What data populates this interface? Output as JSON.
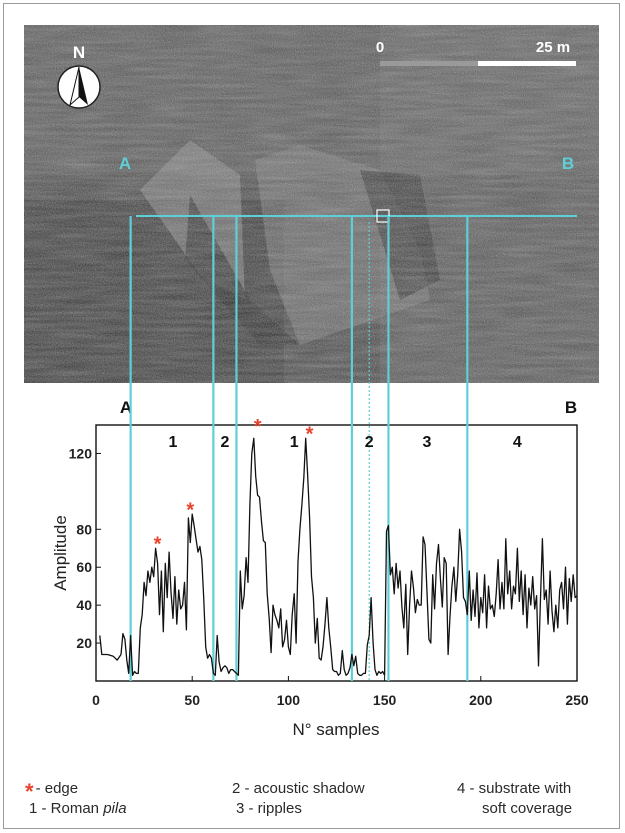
{
  "figure": {
    "sonar_image": {
      "description_label_left": "A",
      "description_label_right": "B",
      "north_label": "N",
      "scale_bar": {
        "start_label": "0",
        "end_label": "25 m"
      }
    },
    "profile_labels": {
      "left": "A",
      "right": "B"
    },
    "segment_labels": [
      "1",
      "2",
      "1",
      "2",
      "3",
      "4"
    ],
    "colors": {
      "profile_line": "#5ecfd6",
      "edge_marker": "#e8432b",
      "trace": "#111111",
      "sonar_dark": "#2b2b2b"
    }
  },
  "legend": {
    "edge_symbol": "*",
    "edge": "- edge",
    "roman_prefix": "1 - Roman ",
    "roman_italic": "pila",
    "acoustic_shadow": "2 - acoustic shadow",
    "ripples": "3 - ripples",
    "substrate_line1": "4 - substrate with",
    "substrate_line2": "soft coverage"
  },
  "chart_data": {
    "type": "line",
    "xlabel": "N° samples",
    "ylabel": "Amplitude",
    "xlim": [
      0,
      250
    ],
    "ylim": [
      0,
      135
    ],
    "xticks": [
      0,
      50,
      100,
      150,
      200,
      250
    ],
    "yticks": [
      20,
      40,
      60,
      80,
      120
    ],
    "segment_boundaries": [
      18,
      61,
      73,
      133,
      152,
      193
    ],
    "segments": [
      {
        "label": "1",
        "x_center": 40
      },
      {
        "label": "2",
        "x_center": 67
      },
      {
        "label": "1",
        "x_center": 103
      },
      {
        "label": "2",
        "x_center": 142
      },
      {
        "label": "3",
        "x_center": 172
      },
      {
        "label": "4",
        "x_center": 219
      }
    ],
    "edge_markers": [
      {
        "x": 32,
        "y": 72
      },
      {
        "x": 49,
        "y": 90
      },
      {
        "x": 84,
        "y": 134
      },
      {
        "x": 111,
        "y": 130
      }
    ],
    "dotted_marker_x": 142,
    "series": [
      {
        "values": [
          [
            2,
            24
          ],
          [
            3,
            14
          ],
          [
            6,
            14
          ],
          [
            9,
            13
          ],
          [
            11,
            11
          ],
          [
            13,
            14
          ],
          [
            14,
            25
          ],
          [
            15,
            22
          ],
          [
            16,
            11
          ],
          [
            17,
            4
          ],
          [
            18,
            24
          ],
          [
            19,
            3
          ],
          [
            20,
            5
          ],
          [
            21,
            4
          ],
          [
            22,
            4
          ],
          [
            23,
            28
          ],
          [
            24,
            35
          ],
          [
            25,
            52
          ],
          [
            26,
            45
          ],
          [
            27,
            58
          ],
          [
            28,
            52
          ],
          [
            29,
            60
          ],
          [
            30,
            55
          ],
          [
            31,
            70
          ],
          [
            32,
            62
          ],
          [
            33,
            35
          ],
          [
            34,
            58
          ],
          [
            35,
            26
          ],
          [
            36,
            62
          ],
          [
            37,
            44
          ],
          [
            38,
            68
          ],
          [
            39,
            47
          ],
          [
            40,
            33
          ],
          [
            41,
            55
          ],
          [
            42,
            30
          ],
          [
            43,
            48
          ],
          [
            44,
            38
          ],
          [
            45,
            40
          ],
          [
            46,
            52
          ],
          [
            47,
            27
          ],
          [
            48,
            86
          ],
          [
            49,
            73
          ],
          [
            50,
            88
          ],
          [
            51,
            82
          ],
          [
            52,
            75
          ],
          [
            53,
            68
          ],
          [
            54,
            71
          ],
          [
            55,
            64
          ],
          [
            56,
            44
          ],
          [
            57,
            18
          ],
          [
            58,
            12
          ],
          [
            59,
            14
          ],
          [
            60,
            12
          ],
          [
            61,
            4
          ],
          [
            62,
            3
          ],
          [
            63,
            24
          ],
          [
            64,
            10
          ],
          [
            65,
            5
          ],
          [
            66,
            7
          ],
          [
            67,
            8
          ],
          [
            68,
            7
          ],
          [
            69,
            4
          ],
          [
            70,
            6
          ],
          [
            71,
            6
          ],
          [
            72,
            5
          ],
          [
            73,
            4
          ],
          [
            74,
            3
          ],
          [
            75,
            58
          ],
          [
            76,
            38
          ],
          [
            77,
            45
          ],
          [
            78,
            65
          ],
          [
            79,
            52
          ],
          [
            80,
            93
          ],
          [
            81,
            120
          ],
          [
            82,
            128
          ],
          [
            83,
            108
          ],
          [
            84,
            98
          ],
          [
            85,
            97
          ],
          [
            86,
            84
          ],
          [
            87,
            74
          ],
          [
            88,
            73
          ],
          [
            89,
            46
          ],
          [
            90,
            33
          ],
          [
            91,
            15
          ],
          [
            92,
            40
          ],
          [
            93,
            35
          ],
          [
            94,
            32
          ],
          [
            95,
            28
          ],
          [
            96,
            38
          ],
          [
            97,
            18
          ],
          [
            98,
            22
          ],
          [
            99,
            32
          ],
          [
            100,
            18
          ],
          [
            101,
            14
          ],
          [
            102,
            35
          ],
          [
            103,
            46
          ],
          [
            104,
            20
          ],
          [
            105,
            63
          ],
          [
            106,
            80
          ],
          [
            107,
            93
          ],
          [
            108,
            107
          ],
          [
            109,
            128
          ],
          [
            110,
            109
          ],
          [
            111,
            86
          ],
          [
            112,
            55
          ],
          [
            113,
            44
          ],
          [
            114,
            20
          ],
          [
            115,
            33
          ],
          [
            116,
            12
          ],
          [
            117,
            11
          ],
          [
            118,
            18
          ],
          [
            119,
            30
          ],
          [
            120,
            44
          ],
          [
            121,
            28
          ],
          [
            122,
            18
          ],
          [
            123,
            6
          ],
          [
            124,
            5
          ],
          [
            125,
            5
          ],
          [
            126,
            3
          ],
          [
            127,
            4
          ],
          [
            128,
            16
          ],
          [
            129,
            6
          ],
          [
            130,
            3
          ],
          [
            131,
            4
          ],
          [
            132,
            7
          ],
          [
            133,
            14
          ],
          [
            134,
            8
          ],
          [
            135,
            13
          ],
          [
            136,
            4
          ],
          [
            137,
            3
          ],
          [
            138,
            3
          ],
          [
            139,
            4
          ],
          [
            140,
            4
          ],
          [
            141,
            19
          ],
          [
            142,
            24
          ],
          [
            143,
            44
          ],
          [
            144,
            20
          ],
          [
            145,
            6
          ],
          [
            146,
            3
          ],
          [
            147,
            5
          ],
          [
            148,
            4
          ],
          [
            149,
            5
          ],
          [
            150,
            3
          ],
          [
            151,
            79
          ],
          [
            152,
            82
          ],
          [
            153,
            56
          ],
          [
            154,
            60
          ],
          [
            155,
            46
          ],
          [
            156,
            62
          ],
          [
            157,
            49
          ],
          [
            158,
            58
          ],
          [
            159,
            39
          ],
          [
            160,
            28
          ],
          [
            161,
            51
          ],
          [
            162,
            14
          ],
          [
            163,
            40
          ],
          [
            164,
            58
          ],
          [
            165,
            49
          ],
          [
            166,
            36
          ],
          [
            167,
            43
          ],
          [
            168,
            40
          ],
          [
            169,
            40
          ],
          [
            170,
            76
          ],
          [
            171,
            72
          ],
          [
            172,
            48
          ],
          [
            173,
            22
          ],
          [
            174,
            20
          ],
          [
            175,
            56
          ],
          [
            176,
            38
          ],
          [
            177,
            62
          ],
          [
            178,
            72
          ],
          [
            179,
            54
          ],
          [
            180,
            39
          ],
          [
            181,
            65
          ],
          [
            182,
            62
          ],
          [
            183,
            14
          ],
          [
            184,
            34
          ],
          [
            185,
            50
          ],
          [
            186,
            60
          ],
          [
            187,
            42
          ],
          [
            188,
            56
          ],
          [
            189,
            80
          ],
          [
            190,
            68
          ],
          [
            191,
            44
          ],
          [
            192,
            42
          ],
          [
            193,
            35
          ],
          [
            194,
            58
          ],
          [
            195,
            32
          ],
          [
            196,
            48
          ],
          [
            197,
            34
          ],
          [
            198,
            57
          ],
          [
            199,
            28
          ],
          [
            200,
            44
          ],
          [
            201,
            36
          ],
          [
            202,
            56
          ],
          [
            203,
            28
          ],
          [
            204,
            50
          ],
          [
            205,
            38
          ],
          [
            206,
            40
          ],
          [
            207,
            34
          ],
          [
            208,
            46
          ],
          [
            209,
            64
          ],
          [
            210,
            38
          ],
          [
            211,
            52
          ],
          [
            212,
            38
          ],
          [
            213,
            75
          ],
          [
            214,
            46
          ],
          [
            215,
            58
          ],
          [
            216,
            38
          ],
          [
            217,
            50
          ],
          [
            218,
            46
          ],
          [
            219,
            70
          ],
          [
            220,
            42
          ],
          [
            221,
            58
          ],
          [
            222,
            35
          ],
          [
            223,
            56
          ],
          [
            224,
            28
          ],
          [
            225,
            49
          ],
          [
            226,
            40
          ],
          [
            227,
            55
          ],
          [
            228,
            38
          ],
          [
            229,
            45
          ],
          [
            230,
            8
          ],
          [
            231,
            42
          ],
          [
            232,
            75
          ],
          [
            233,
            43
          ],
          [
            234,
            48
          ],
          [
            235,
            30
          ],
          [
            236,
            58
          ],
          [
            237,
            37
          ],
          [
            238,
            26
          ],
          [
            239,
            40
          ],
          [
            240,
            28
          ],
          [
            241,
            48
          ],
          [
            242,
            52
          ],
          [
            243,
            38
          ],
          [
            244,
            60
          ],
          [
            245,
            30
          ],
          [
            246,
            54
          ],
          [
            247,
            42
          ],
          [
            248,
            56
          ],
          [
            249,
            44
          ],
          [
            250,
            45
          ]
        ]
      }
    ]
  }
}
